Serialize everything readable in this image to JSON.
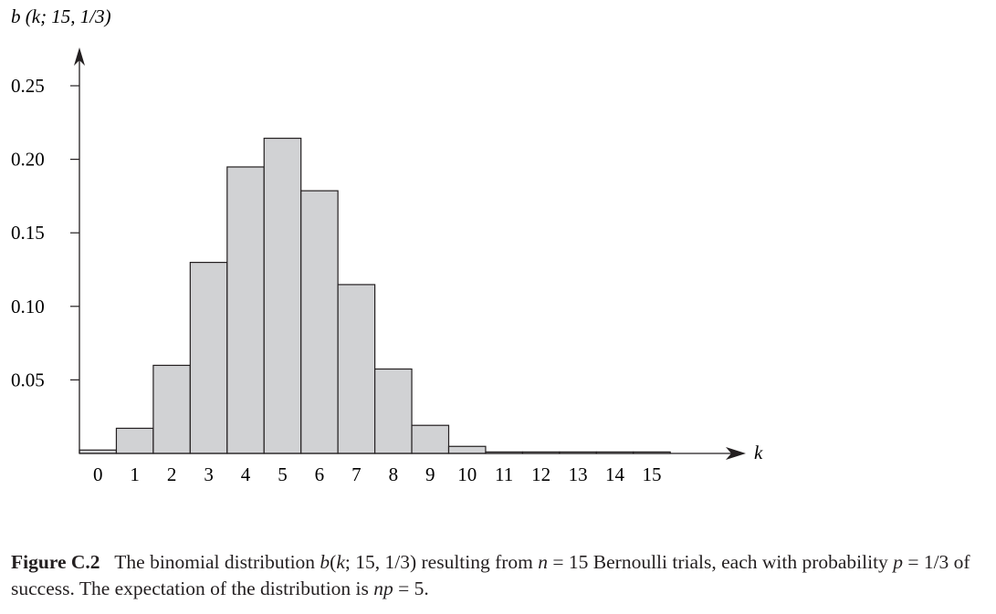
{
  "chart_data": {
    "type": "bar",
    "ylabel": "b (k; 15, 1/3)",
    "xlabel": "k",
    "categories": [
      "0",
      "1",
      "2",
      "3",
      "4",
      "5",
      "6",
      "7",
      "8",
      "9",
      "10",
      "11",
      "12",
      "13",
      "14",
      "15"
    ],
    "values": [
      0.0023,
      0.0171,
      0.0599,
      0.1299,
      0.1948,
      0.2143,
      0.1786,
      0.1148,
      0.0574,
      0.0191,
      0.0048,
      0.0009,
      0.0001,
      1e-05,
      3e-07,
      1e-08
    ],
    "yticks": [
      "0.05",
      "0.10",
      "0.15",
      "0.20",
      "0.25"
    ],
    "ylim": [
      0,
      0.25
    ],
    "grid": false,
    "bar_color": "#d1d2d4",
    "edge_color": "#231f20"
  },
  "caption": {
    "label": "Figure C.2",
    "segments": [
      {
        "text": "   The binomial distribution ",
        "italic": false
      },
      {
        "text": "b",
        "italic": true
      },
      {
        "text": "(",
        "italic": false
      },
      {
        "text": "k",
        "italic": true
      },
      {
        "text": "; 15, 1/3) resulting from ",
        "italic": false
      },
      {
        "text": "n",
        "italic": true
      },
      {
        "text": " = 15 Bernoulli trials, each with probability ",
        "italic": false
      },
      {
        "text": "p",
        "italic": true
      },
      {
        "text": " = 1/3 of success. The expectation of the distribution is ",
        "italic": false
      },
      {
        "text": "np",
        "italic": true
      },
      {
        "text": " = 5.",
        "italic": false
      }
    ]
  }
}
